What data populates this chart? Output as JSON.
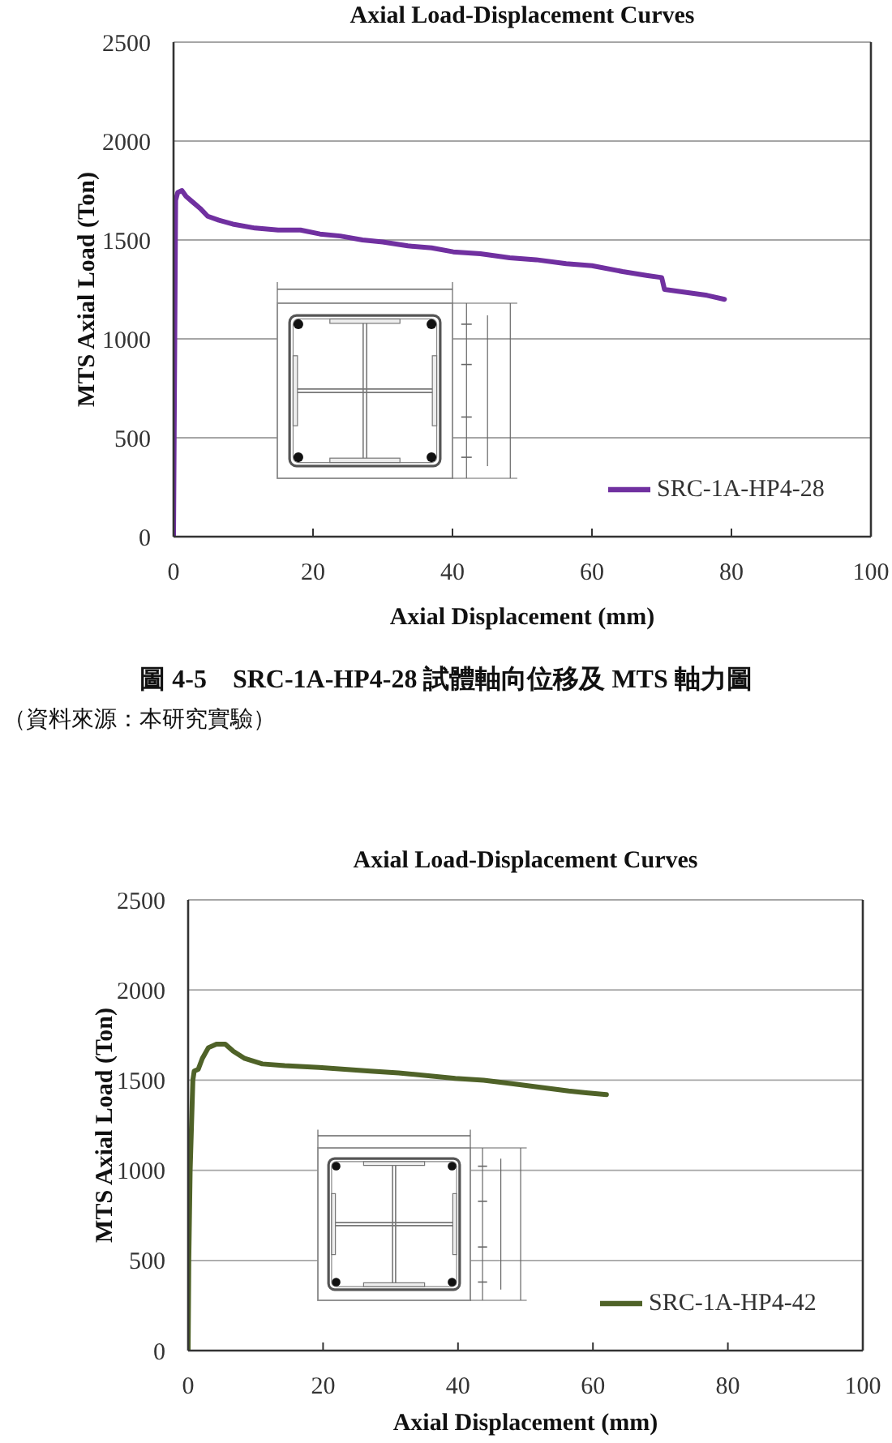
{
  "chart_data": [
    {
      "type": "line",
      "title": "Axial Load-Displacement Curves",
      "xlabel": "Axial Displacement (mm)",
      "ylabel": "MTS Axial Load (Ton)",
      "x": [
        0,
        0.3,
        0.6,
        1.2,
        1.8,
        2.8,
        3.8,
        4.9,
        6.5,
        8.5,
        11.7,
        15,
        18.2,
        21,
        23.9,
        27.1,
        30,
        33.6,
        37,
        40.1,
        44,
        48.2,
        52,
        56.3,
        60,
        64.4,
        68,
        70,
        70.4,
        72.5,
        76.5,
        79
      ],
      "series": [
        {
          "name": "SRC-1A-HP4-28",
          "color": "#7030a0",
          "values": [
            0,
            1700,
            1740,
            1750,
            1720,
            1690,
            1660,
            1620,
            1600,
            1580,
            1560,
            1550,
            1550,
            1530,
            1520,
            1500,
            1490,
            1470,
            1460,
            1440,
            1430,
            1410,
            1400,
            1380,
            1370,
            1340,
            1320,
            1310,
            1250,
            1240,
            1220,
            1200
          ]
        }
      ],
      "xlim": [
        0,
        100
      ],
      "xticks": [
        0,
        20,
        40,
        60,
        80,
        100
      ],
      "ylim": [
        0,
        2500
      ],
      "yticks": [
        0,
        500,
        1000,
        1500,
        2000,
        2500
      ],
      "grid": "y",
      "legend": "bottom right",
      "line_style": "solid",
      "annotations": [
        "圖 4-5　SRC-1A-HP4-28 試體軸向位移及 MTS 軸力圖",
        "（資料來源：本研究實驗）"
      ]
    },
    {
      "type": "line",
      "title": "Axial Load-Displacement Curves",
      "xlabel": "Axial Displacement (mm)",
      "ylabel": "MTS Axial Load (Ton)",
      "x": [
        0,
        0.1,
        0.3,
        0.7,
        0.9,
        1.5,
        2.1,
        3,
        4.2,
        5.5,
        6.7,
        8.4,
        11,
        14.3,
        19.4,
        27,
        31.2,
        39.6,
        43.8,
        48,
        52.2,
        56.4,
        59,
        62
      ],
      "series": [
        {
          "name": "SRC-1A-HP4-42",
          "color": "#4f6228",
          "values": [
            0,
            500,
            1000,
            1500,
            1550,
            1560,
            1620,
            1680,
            1700,
            1700,
            1660,
            1620,
            1590,
            1580,
            1570,
            1550,
            1540,
            1510,
            1500,
            1480,
            1460,
            1440,
            1430,
            1420
          ]
        }
      ],
      "xlim": [
        0,
        100
      ],
      "xticks": [
        0,
        20,
        40,
        60,
        80,
        100
      ],
      "ylim": [
        0,
        2500
      ],
      "yticks": [
        0,
        500,
        1000,
        1500,
        2000,
        2500
      ],
      "grid": "y",
      "legend": "bottom right",
      "line_style": "solid"
    }
  ]
}
